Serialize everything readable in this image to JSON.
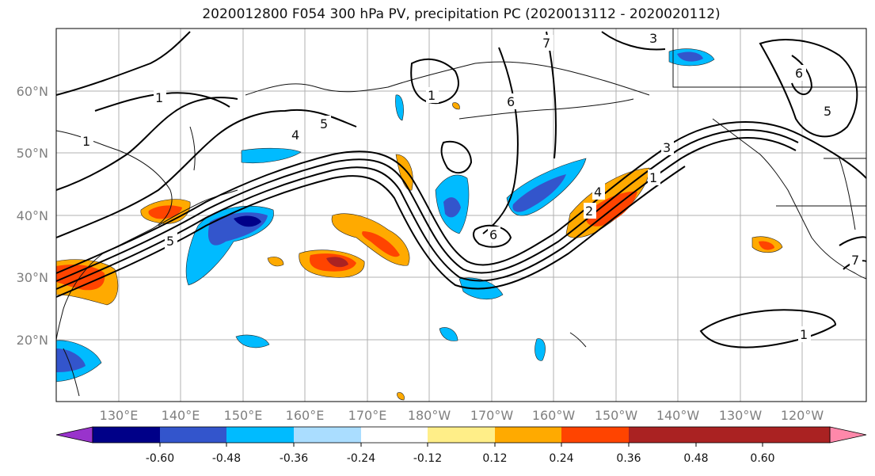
{
  "title": "2020012800 F054 300 hPa PV, precipitation PC (2020013112 - 2020020112)",
  "lat_labels": [
    "60°N",
    "50°N",
    "40°N",
    "30°N",
    "20°N"
  ],
  "lon_labels": [
    "130°E",
    "140°E",
    "150°E",
    "160°E",
    "170°E",
    "180°W",
    "170°W",
    "160°W",
    "150°W",
    "140°W",
    "130°W",
    "120°W"
  ],
  "colorbar": {
    "colors": [
      "#9933cc",
      "#000088",
      "#3355cc",
      "#00bbff",
      "#aaddff",
      "#ffffff",
      "#ffee88",
      "#ffaa00",
      "#ff4400",
      "#aa2222",
      "#ff88aa"
    ],
    "tick_labels": [
      "-0.60",
      "-0.48",
      "-0.36",
      "-0.24",
      "-0.12",
      "0.12",
      "0.24",
      "0.36",
      "0.48",
      "0.60"
    ]
  },
  "contour_labels": [
    "1",
    "1",
    "2",
    "3",
    "3",
    "4",
    "4",
    "5",
    "5",
    "5",
    "6",
    "6",
    "6",
    "7",
    "7",
    "1",
    "1",
    "1"
  ]
}
